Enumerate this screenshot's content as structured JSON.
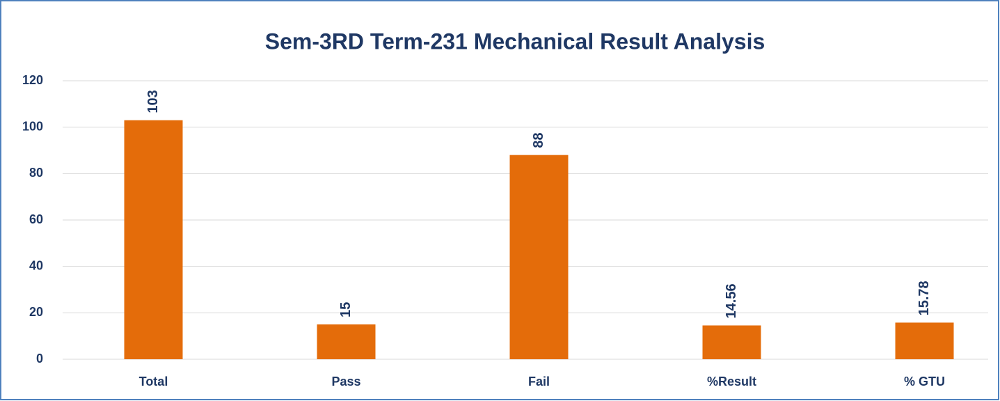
{
  "chart_data": {
    "type": "bar",
    "title": "Sem-3RD Term-231  Mechanical Result Analysis",
    "categories": [
      "Total",
      "Pass",
      "Fail",
      "%Result",
      "% GTU"
    ],
    "values": [
      103,
      15,
      88,
      14.56,
      15.78
    ],
    "color": "#e46c0a",
    "ylim": [
      0,
      120
    ],
    "yticks": [
      0,
      20,
      40,
      60,
      80,
      100,
      120
    ],
    "grid": true
  }
}
